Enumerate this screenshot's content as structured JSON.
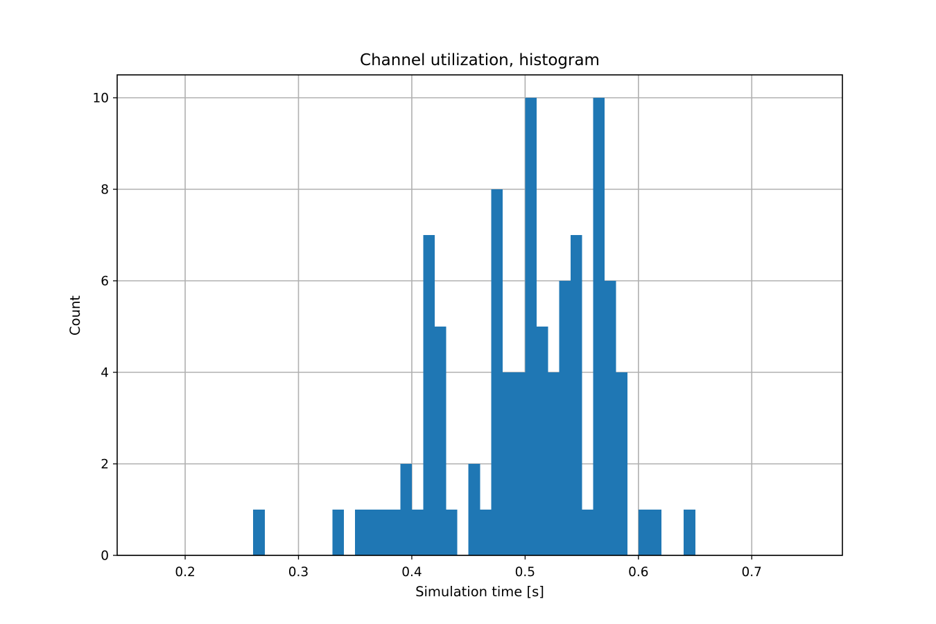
{
  "chart_data": {
    "type": "bar",
    "title": "Channel utilization, histogram",
    "xlabel": "Simulation time [s]",
    "ylabel": "Count",
    "xlim": [
      0.14,
      0.78
    ],
    "ylim": [
      0,
      10.5
    ],
    "xticks": [
      0.2,
      0.3,
      0.4,
      0.5,
      0.6,
      0.7
    ],
    "xtick_labels": [
      "0.2",
      "0.3",
      "0.4",
      "0.5",
      "0.6",
      "0.7"
    ],
    "yticks": [
      0,
      2,
      4,
      6,
      8,
      10
    ],
    "ytick_labels": [
      "0",
      "2",
      "4",
      "6",
      "8",
      "10"
    ],
    "grid": true,
    "bar_color": "#1f77b4",
    "bins": [
      {
        "x0": 0.26,
        "x1": 0.27,
        "count": 1
      },
      {
        "x0": 0.33,
        "x1": 0.34,
        "count": 1
      },
      {
        "x0": 0.35,
        "x1": 0.36,
        "count": 1
      },
      {
        "x0": 0.36,
        "x1": 0.37,
        "count": 1
      },
      {
        "x0": 0.37,
        "x1": 0.38,
        "count": 1
      },
      {
        "x0": 0.38,
        "x1": 0.39,
        "count": 1
      },
      {
        "x0": 0.39,
        "x1": 0.4,
        "count": 2
      },
      {
        "x0": 0.4,
        "x1": 0.41,
        "count": 1
      },
      {
        "x0": 0.41,
        "x1": 0.42,
        "count": 7
      },
      {
        "x0": 0.42,
        "x1": 0.43,
        "count": 5
      },
      {
        "x0": 0.43,
        "x1": 0.44,
        "count": 1
      },
      {
        "x0": 0.45,
        "x1": 0.46,
        "count": 2
      },
      {
        "x0": 0.46,
        "x1": 0.47,
        "count": 1
      },
      {
        "x0": 0.47,
        "x1": 0.48,
        "count": 8
      },
      {
        "x0": 0.48,
        "x1": 0.49,
        "count": 4
      },
      {
        "x0": 0.49,
        "x1": 0.5,
        "count": 4
      },
      {
        "x0": 0.5,
        "x1": 0.51,
        "count": 10
      },
      {
        "x0": 0.51,
        "x1": 0.52,
        "count": 5
      },
      {
        "x0": 0.52,
        "x1": 0.53,
        "count": 4
      },
      {
        "x0": 0.53,
        "x1": 0.54,
        "count": 6
      },
      {
        "x0": 0.54,
        "x1": 0.55,
        "count": 7
      },
      {
        "x0": 0.55,
        "x1": 0.56,
        "count": 1
      },
      {
        "x0": 0.56,
        "x1": 0.57,
        "count": 10
      },
      {
        "x0": 0.57,
        "x1": 0.58,
        "count": 6
      },
      {
        "x0": 0.58,
        "x1": 0.59,
        "count": 4
      },
      {
        "x0": 0.6,
        "x1": 0.61,
        "count": 1
      },
      {
        "x0": 0.61,
        "x1": 0.62,
        "count": 1
      },
      {
        "x0": 0.64,
        "x1": 0.65,
        "count": 1
      }
    ]
  }
}
